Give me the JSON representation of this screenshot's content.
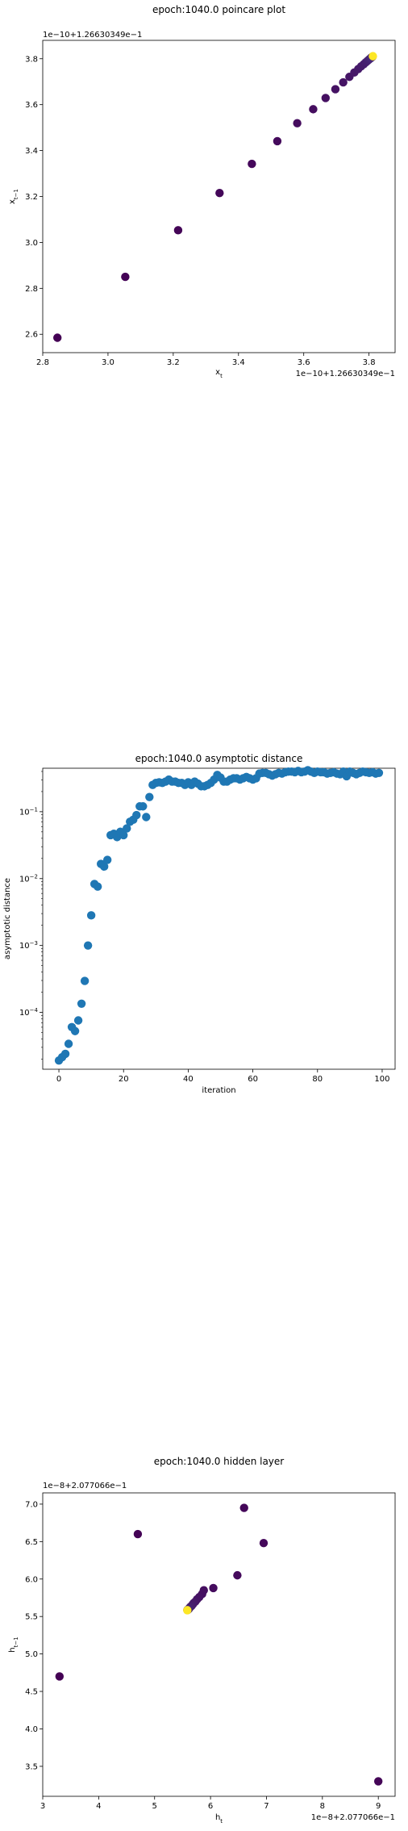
{
  "chart_data": [
    {
      "type": "scatter",
      "title": "epoch:1040.0 poincare plot",
      "xlabel": "x_t",
      "ylabel": "x_{t-1}",
      "x_offset_label": "1e−10+1.26630349e−1",
      "y_offset_label": "1e−10+1.26630349e−1",
      "xlim": [
        2.8,
        3.88
      ],
      "ylim": [
        2.52,
        3.88
      ],
      "x_ticks": [
        "2.8",
        "3.0",
        "3.2",
        "3.4",
        "3.6",
        "3.8"
      ],
      "y_ticks": [
        "2.6",
        "2.8",
        "3.0",
        "3.2",
        "3.4",
        "3.6",
        "3.8"
      ],
      "colormap": [
        "#440154",
        "#472d7b",
        "#3b528b",
        "#fde725"
      ],
      "points": [
        [
          2.845,
          2.585
        ],
        [
          3.053,
          2.85
        ],
        [
          3.215,
          3.053
        ],
        [
          3.342,
          3.215
        ],
        [
          3.441,
          3.342
        ],
        [
          3.519,
          3.441
        ],
        [
          3.58,
          3.519
        ],
        [
          3.629,
          3.58
        ],
        [
          3.667,
          3.629
        ],
        [
          3.697,
          3.667
        ],
        [
          3.721,
          3.697
        ],
        [
          3.74,
          3.721
        ],
        [
          3.755,
          3.74
        ],
        [
          3.767,
          3.755
        ],
        [
          3.776,
          3.767
        ],
        [
          3.784,
          3.776
        ],
        [
          3.79,
          3.784
        ],
        [
          3.795,
          3.79
        ],
        [
          3.799,
          3.795
        ],
        [
          3.802,
          3.799
        ],
        [
          3.805,
          3.802
        ],
        [
          3.807,
          3.805
        ],
        [
          3.809,
          3.807
        ],
        [
          3.811,
          3.809
        ],
        [
          3.812,
          3.811
        ]
      ]
    },
    {
      "type": "scatter",
      "title": "epoch:1040.0 asymptotic distance",
      "xlabel": "iteration",
      "ylabel": "asymptotic distance",
      "xlim": [
        -5,
        104
      ],
      "ylim_log10": [
        -4.85,
        -0.35
      ],
      "x_ticks": [
        "0",
        "20",
        "40",
        "60",
        "80",
        "100"
      ],
      "y_ticks": [
        {
          "base": "10",
          "exp": "−4",
          "value": -4
        },
        {
          "base": "10",
          "exp": "−3",
          "value": -3
        },
        {
          "base": "10",
          "exp": "−2",
          "value": -2
        },
        {
          "base": "10",
          "exp": "−1",
          "value": -1
        }
      ],
      "color": "#1f77b4",
      "x": [
        0,
        1,
        2,
        3,
        4,
        5,
        6,
        7,
        8,
        9,
        10,
        11,
        12,
        13,
        14,
        15,
        16,
        17,
        18,
        19,
        20,
        21,
        22,
        23,
        24,
        25,
        26,
        27,
        28,
        29,
        30,
        31,
        32,
        33,
        34,
        35,
        36,
        37,
        38,
        39,
        40,
        41,
        42,
        43,
        44,
        45,
        46,
        47,
        48,
        49,
        50,
        51,
        52,
        53,
        54,
        55,
        56,
        57,
        58,
        59,
        60,
        61,
        62,
        63,
        64,
        65,
        66,
        67,
        68,
        69,
        70,
        71,
        72,
        73,
        74,
        75,
        76,
        77,
        78,
        79,
        80,
        81,
        82,
        83,
        84,
        85,
        86,
        87,
        88,
        89,
        90,
        91,
        92,
        93,
        94,
        95,
        96,
        97,
        98,
        99
      ],
      "log10_y": [
        -4.72,
        -4.67,
        -4.62,
        -4.47,
        -4.22,
        -4.28,
        -4.12,
        -3.87,
        -3.53,
        -3.0,
        -2.55,
        -2.08,
        -2.12,
        -1.78,
        -1.82,
        -1.72,
        -1.35,
        -1.33,
        -1.38,
        -1.3,
        -1.35,
        -1.25,
        -1.15,
        -1.12,
        -1.05,
        -0.92,
        -0.92,
        -1.08,
        -0.78,
        -0.6,
        -0.57,
        -0.56,
        -0.57,
        -0.55,
        -0.52,
        -0.55,
        -0.55,
        -0.57,
        -0.57,
        -0.6,
        -0.56,
        -0.6,
        -0.55,
        -0.58,
        -0.62,
        -0.62,
        -0.6,
        -0.57,
        -0.52,
        -0.45,
        -0.49,
        -0.55,
        -0.55,
        -0.52,
        -0.5,
        -0.5,
        -0.52,
        -0.5,
        -0.48,
        -0.5,
        -0.52,
        -0.5,
        -0.43,
        -0.42,
        -0.42,
        -0.44,
        -0.46,
        -0.44,
        -0.42,
        -0.43,
        -0.41,
        -0.4,
        -0.4,
        -0.41,
        -0.39,
        -0.41,
        -0.4,
        -0.38,
        -0.4,
        -0.42,
        -0.4,
        -0.41,
        -0.41,
        -0.43,
        -0.42,
        -0.41,
        -0.43,
        -0.44,
        -0.4,
        -0.47,
        -0.4,
        -0.42,
        -0.44,
        -0.42,
        -0.4,
        -0.41,
        -0.42,
        -0.41,
        -0.43,
        -0.42
      ]
    },
    {
      "type": "scatter",
      "title": "epoch:1040.0 hidden layer",
      "xlabel": "h_t",
      "ylabel": "h_{t-1}",
      "x_offset_label": "1e−8+2.077066e−1",
      "y_offset_label": "1e−8+2.077066e−1",
      "xlim": [
        3.0,
        9.3
      ],
      "ylim": [
        3.1,
        7.15
      ],
      "x_ticks": [
        "3",
        "4",
        "5",
        "6",
        "7",
        "8",
        "9"
      ],
      "y_ticks": [
        "3.5",
        "4.0",
        "4.5",
        "5.0",
        "5.5",
        "6.0",
        "6.5",
        "7.0"
      ],
      "colormap": [
        "#440154",
        "#472d7b",
        "#3b528b",
        "#fde725"
      ],
      "points": [
        [
          3.3,
          4.7
        ],
        [
          4.7,
          6.6
        ],
        [
          9.0,
          3.3
        ],
        [
          6.6,
          6.95
        ],
        [
          6.95,
          6.48
        ],
        [
          6.48,
          6.05
        ],
        [
          6.05,
          5.88
        ],
        [
          5.88,
          5.85
        ],
        [
          5.85,
          5.8
        ],
        [
          5.8,
          5.76
        ],
        [
          5.76,
          5.73
        ],
        [
          5.73,
          5.7
        ],
        [
          5.7,
          5.68
        ],
        [
          5.68,
          5.66
        ],
        [
          5.66,
          5.64
        ],
        [
          5.64,
          5.63
        ],
        [
          5.63,
          5.62
        ],
        [
          5.62,
          5.61
        ],
        [
          5.61,
          5.6
        ],
        [
          5.6,
          5.595
        ],
        [
          5.595,
          5.59
        ],
        [
          5.59,
          5.588
        ],
        [
          5.588,
          5.586
        ],
        [
          5.586,
          5.585
        ],
        [
          5.585,
          5.584
        ]
      ]
    }
  ]
}
